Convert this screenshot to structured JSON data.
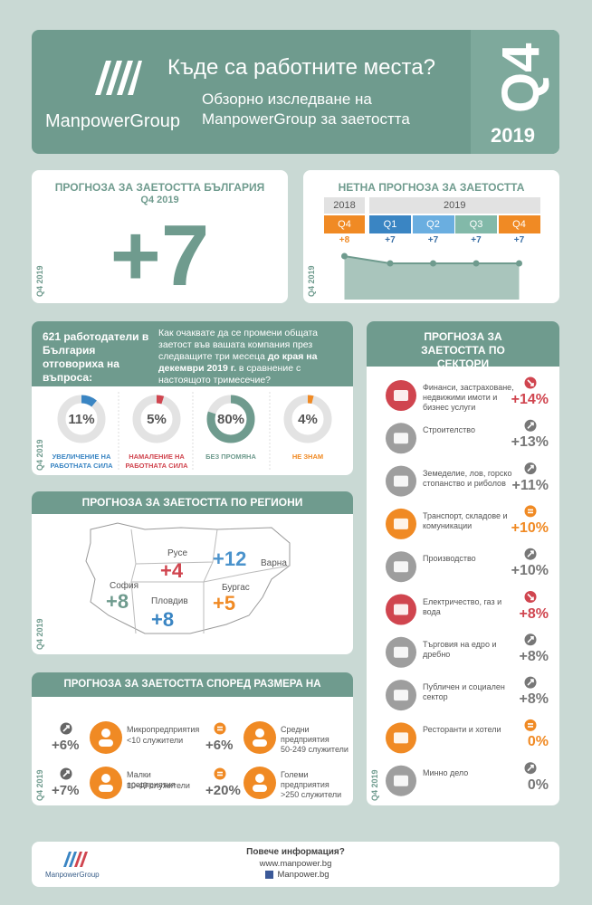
{
  "header": {
    "brand": "ManpowerGroup",
    "title": "Къде са работните места?",
    "subtitle": "Обзорно изследване на ManpowerGroup за заетостта",
    "quarter": "Q4",
    "year": "2019"
  },
  "side_label": "Q4 2019",
  "outlook": {
    "title": "ПРОГНОЗА ЗА ЗАЕТОСТТА БЪЛГАРИЯ",
    "period": "Q4 2019",
    "value": "+7"
  },
  "net": {
    "title": "НЕТНА ПРОГНОЗА ЗА ЗАЕТОСТТА",
    "years": [
      {
        "label": "2018",
        "span": 1
      },
      {
        "label": "2019",
        "span": 4
      }
    ],
    "quarters": [
      {
        "label": "Q4",
        "value": 8,
        "value_label": "+8",
        "color": "#f08a24"
      },
      {
        "label": "Q1",
        "value": 7,
        "value_label": "+7",
        "color": "#3a85c3"
      },
      {
        "label": "Q2",
        "value": 7,
        "value_label": "+7",
        "color": "#6aaee0"
      },
      {
        "label": "Q3",
        "value": 7,
        "value_label": "+7",
        "color": "#82b9a9"
      },
      {
        "label": "Q4",
        "value": 7,
        "value_label": "+7",
        "color": "#f08a24"
      }
    ]
  },
  "survey": {
    "intro": "621 работодатели в България отговориха на въпроса:",
    "question": [
      "Как очаквате да се промени общата заетост във вашата компания през следващите три месеца ",
      "до края на декември 2019 г.",
      " в сравнение с настоящото тримесечие?"
    ],
    "items": [
      {
        "value": 11,
        "value_label": "11%",
        "label": "УВЕЛИЧЕНИЕ НА РАБОТНАТА СИЛА",
        "color": "#3a85c3"
      },
      {
        "value": 5,
        "value_label": "5%",
        "label": "НАМАЛЕНИЕ НА РАБОТНАТА СИЛА",
        "color": "#d0454f"
      },
      {
        "value": 80,
        "value_label": "80%",
        "label": "БЕЗ ПРОМЯНА",
        "color": "#6f9b8e"
      },
      {
        "value": 4,
        "value_label": "4%",
        "label": "НЕ ЗНАМ",
        "color": "#f08a24"
      }
    ]
  },
  "regions": {
    "title": "ПРОГНОЗА ЗА ЗАЕТОСТТА ПО РЕГИОНИ",
    "items": [
      {
        "name": "Русе",
        "value": "+4",
        "color": "#d0454f"
      },
      {
        "name": "Варна",
        "value": "+12",
        "color": "#4b93cc"
      },
      {
        "name": "София",
        "value": "+8",
        "color": "#6f9b8e"
      },
      {
        "name": "Пловдив",
        "value": "+8",
        "color": "#3a85c3"
      },
      {
        "name": "Бургас",
        "value": "+5",
        "color": "#f08a24"
      }
    ]
  },
  "company_size": {
    "title": "ПРОГНОЗА ЗА ЗАЕТОСТТА СПОРЕД РАЗМЕРА НА КОМПАНИИТЕ",
    "items": [
      {
        "value": "+6%",
        "name": "Микропредприятия",
        "desc": "<10 служители",
        "trend": "up",
        "color": "#666666"
      },
      {
        "value": "+6%",
        "name": "Средни предприятия",
        "desc": "50-249 служители",
        "trend": "equal",
        "color": "#666666"
      },
      {
        "value": "+7%",
        "name": "Малки предприятия",
        "desc": "10-49 служители",
        "trend": "up",
        "color": "#666666"
      },
      {
        "value": "+20%",
        "name": "Големи предприятия",
        "desc": ">250 служители",
        "trend": "equal",
        "color": "#666666"
      }
    ]
  },
  "sectors": {
    "title": "ПРОГНОЗА ЗА ЗАЕТОСТТА ПО СЕКТОРИ",
    "items": [
      {
        "name": "Финанси, застраховане, недвижими имоти и бизнес услуги",
        "value": "+14%",
        "trend": "down",
        "color": "#d0454f"
      },
      {
        "name": "Строителство",
        "value": "+13%",
        "trend": "up",
        "color": "#777777"
      },
      {
        "name": "Земеделие, лов, горско стопанство и риболов",
        "value": "+11%",
        "trend": "up",
        "color": "#777777"
      },
      {
        "name": "Транспорт, складове и комуникации",
        "value": "+10%",
        "trend": "equal",
        "color": "#f08a24"
      },
      {
        "name": "Производство",
        "value": "+10%",
        "trend": "up",
        "color": "#777777"
      },
      {
        "name": "Електричество, газ и вода",
        "value": "+8%",
        "trend": "down",
        "color": "#d0454f"
      },
      {
        "name": "Търговия на едро и дребно",
        "value": "+8%",
        "trend": "up",
        "color": "#777777"
      },
      {
        "name": "Публичен и социален сектор",
        "value": "+8%",
        "trend": "up",
        "color": "#777777"
      },
      {
        "name": "Ресторанти и хотели",
        "value": "0%",
        "trend": "equal",
        "color": "#f08a24"
      },
      {
        "name": "Минно дело",
        "value": "0%",
        "trend": "up",
        "color": "#777777"
      }
    ]
  },
  "footer": {
    "brand": "ManpowerGroup",
    "more": "Повече информация?",
    "url": "www.manpower.bg",
    "facebook": "Manpower.bg"
  }
}
